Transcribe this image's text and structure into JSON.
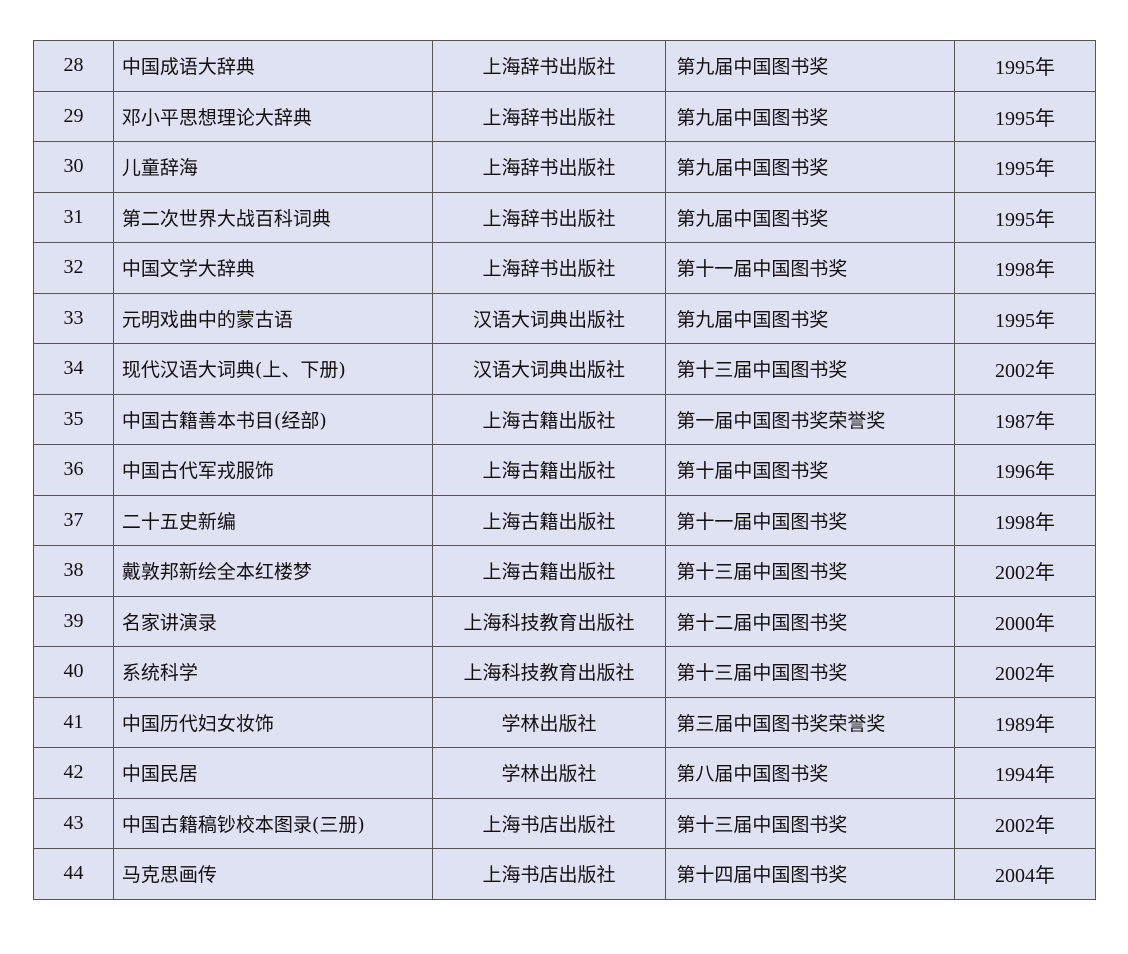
{
  "rows": [
    {
      "no": "28",
      "title": "中国成语大辞典",
      "publisher": "上海辞书出版社",
      "award": "第九届中国图书奖",
      "year": "1995年"
    },
    {
      "no": "29",
      "title": "邓小平思想理论大辞典",
      "publisher": "上海辞书出版社",
      "award": "第九届中国图书奖",
      "year": "1995年"
    },
    {
      "no": "30",
      "title": "儿童辞海",
      "publisher": "上海辞书出版社",
      "award": "第九届中国图书奖",
      "year": "1995年"
    },
    {
      "no": "31",
      "title": "第二次世界大战百科词典",
      "publisher": "上海辞书出版社",
      "award": "第九届中国图书奖",
      "year": "1995年"
    },
    {
      "no": "32",
      "title": "中国文学大辞典",
      "publisher": "上海辞书出版社",
      "award": "第十一届中国图书奖",
      "year": "1998年"
    },
    {
      "no": "33",
      "title": "元明戏曲中的蒙古语",
      "publisher": "汉语大词典出版社",
      "award": "第九届中国图书奖",
      "year": "1995年"
    },
    {
      "no": "34",
      "title": "现代汉语大词典(上、下册)",
      "publisher": "汉语大词典出版社",
      "award": "第十三届中国图书奖",
      "year": "2002年"
    },
    {
      "no": "35",
      "title": "中国古籍善本书目(经部)",
      "publisher": "上海古籍出版社",
      "award": "第一届中国图书奖荣誉奖",
      "year": "1987年"
    },
    {
      "no": "36",
      "title": "中国古代军戎服饰",
      "publisher": "上海古籍出版社",
      "award": "第十届中国图书奖",
      "year": "1996年"
    },
    {
      "no": "37",
      "title": "二十五史新编",
      "publisher": "上海古籍出版社",
      "award": "第十一届中国图书奖",
      "year": "1998年"
    },
    {
      "no": "38",
      "title": "戴敦邦新绘全本红楼梦",
      "publisher": "上海古籍出版社",
      "award": "第十三届中国图书奖",
      "year": "2002年"
    },
    {
      "no": "39",
      "title": "名家讲演录",
      "publisher": "上海科技教育出版社",
      "award": "第十二届中国图书奖",
      "year": "2000年"
    },
    {
      "no": "40",
      "title": "系统科学",
      "publisher": "上海科技教育出版社",
      "award": "第十三届中国图书奖",
      "year": "2002年"
    },
    {
      "no": "41",
      "title": "中国历代妇女妆饰",
      "publisher": "学林出版社",
      "award": "第三届中国图书奖荣誉奖",
      "year": "1989年"
    },
    {
      "no": "42",
      "title": "中国民居",
      "publisher": "学林出版社",
      "award": "第八届中国图书奖",
      "year": "1994年"
    },
    {
      "no": "43",
      "title": "中国古籍稿钞校本图录(三册)",
      "publisher": "上海书店出版社",
      "award": "第十三届中国图书奖",
      "year": "2002年"
    },
    {
      "no": "44",
      "title": "马克思画传",
      "publisher": "上海书店出版社",
      "award": "第十四届中国图书奖",
      "year": "2004年"
    }
  ],
  "colors": {
    "cell_background": "#dfe2f2",
    "border": "#555555"
  }
}
